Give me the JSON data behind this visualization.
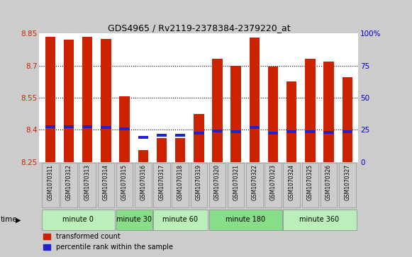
{
  "title": "GDS4965 / Rv2119-2378384-2379220_at",
  "samples": [
    "GSM1070311",
    "GSM1070312",
    "GSM1070313",
    "GSM1070314",
    "GSM1070315",
    "GSM1070316",
    "GSM1070317",
    "GSM1070318",
    "GSM1070319",
    "GSM1070320",
    "GSM1070321",
    "GSM1070322",
    "GSM1070323",
    "GSM1070324",
    "GSM1070325",
    "GSM1070326",
    "GSM1070327"
  ],
  "transformed_count": [
    8.835,
    8.82,
    8.835,
    8.825,
    8.555,
    8.305,
    8.36,
    8.36,
    8.475,
    8.73,
    8.7,
    8.83,
    8.695,
    8.625,
    8.73,
    8.72,
    8.645
  ],
  "percentile_rank": [
    8.415,
    8.415,
    8.415,
    8.41,
    8.405,
    8.365,
    8.375,
    8.375,
    8.385,
    8.395,
    8.39,
    8.41,
    8.385,
    8.39,
    8.39,
    8.388,
    8.39
  ],
  "groups": [
    {
      "label": "minute 0",
      "start": 0,
      "end": 4,
      "color": "#bbeebb"
    },
    {
      "label": "minute 30",
      "start": 4,
      "end": 6,
      "color": "#88dd88"
    },
    {
      "label": "minute 60",
      "start": 6,
      "end": 9,
      "color": "#bbeebb"
    },
    {
      "label": "minute 180",
      "start": 9,
      "end": 13,
      "color": "#88dd88"
    },
    {
      "label": "minute 360",
      "start": 13,
      "end": 17,
      "color": "#bbeebb"
    }
  ],
  "ymin": 8.25,
  "ymax": 8.85,
  "yticks": [
    8.25,
    8.4,
    8.55,
    8.7,
    8.85
  ],
  "ytick_labels": [
    "8.25",
    "8.4",
    "8.55",
    "8.7",
    "8.85"
  ],
  "y2ticks": [
    0,
    25,
    50,
    75,
    100
  ],
  "y2tick_labels": [
    "0",
    "25",
    "50",
    "75",
    "100%"
  ],
  "bar_color": "#cc2200",
  "blue_color": "#2222cc",
  "bar_width": 0.55,
  "grid_color": "#000000",
  "ytick_color": "#cc2200",
  "y2tick_color": "#0000cc",
  "bg_color": "#cccccc",
  "plot_bg": "#ffffff",
  "legend_entries": [
    "transformed count",
    "percentile rank within the sample"
  ]
}
